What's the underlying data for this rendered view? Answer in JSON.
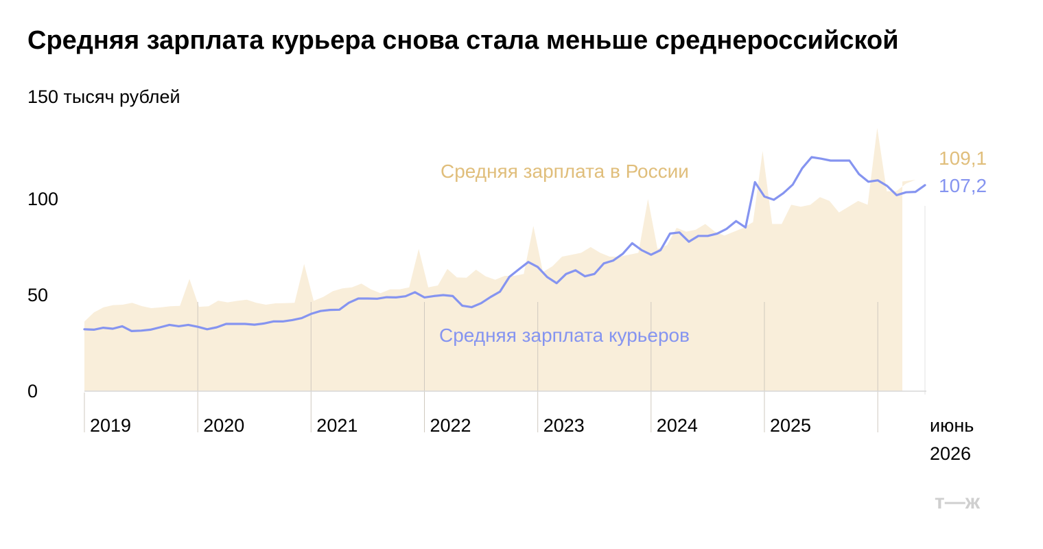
{
  "chart_data": {
    "type": "area",
    "title": "Средняя зарплата курьера снова стала меньше среднероссийской",
    "ylabel": "",
    "xlabel": "",
    "unit": "150 тысяч рублей",
    "yticks": [
      0,
      50,
      100
    ],
    "ylim": [
      0,
      150
    ],
    "x_start": "2019-01",
    "x_end": "2026-06",
    "x_tick_labels": [
      "2019",
      "2020",
      "2021",
      "2022",
      "2023",
      "2024",
      "2025"
    ],
    "x_end_label_line1": "июнь",
    "x_end_label_line2": "2026",
    "grid": false,
    "series": [
      {
        "name": "Средняя зарплата в России",
        "render": "area",
        "color": "#F9EEDA",
        "label_color": "#E0BE7B",
        "last_value_label": "109,1",
        "values": [
          36.2,
          41.0,
          43.6,
          44.8,
          45.0,
          46.0,
          44.3,
          43.2,
          43.6,
          44.2,
          44.4,
          58.4,
          43.9,
          44.2,
          47.1,
          46.2,
          47.0,
          47.6,
          46.0,
          45.0,
          45.7,
          45.8,
          46.0,
          66.2,
          47.0,
          49.0,
          52.0,
          53.5,
          54.0,
          56.0,
          53.0,
          51.0,
          53.0,
          53.0,
          54.0,
          74.0,
          54.0,
          55.0,
          63.6,
          59.2,
          59.0,
          63.2,
          59.8,
          58.0,
          60.0,
          60.0,
          61.0,
          86.0,
          62.0,
          65.0,
          70.0,
          71.0,
          72.0,
          75.0,
          72.0,
          70.0,
          70.0,
          71.0,
          72.0,
          100.0,
          74.0,
          76.0,
          85.0,
          83.0,
          84.0,
          87.0,
          83.0,
          81.0,
          83.0,
          85.0,
          88.0,
          125.0,
          87.0,
          87.0,
          97.0,
          96.0,
          97.0,
          101.0,
          99.0,
          93.0,
          96.0,
          99.0,
          97.0,
          137.0,
          104.0,
          104.0,
          108.0,
          110.0,
          109.1
        ]
      },
      {
        "name": "Средняя зарплата курьеров",
        "render": "line",
        "color": "#8594F0",
        "label_color": "#8594F0",
        "last_value_label": "107,2",
        "values": [
          32.2,
          32.0,
          33.0,
          32.5,
          33.8,
          31.3,
          31.5,
          32.0,
          33.2,
          34.5,
          33.8,
          34.5,
          33.5,
          32.2,
          33.2,
          35.0,
          35.0,
          35.0,
          34.6,
          35.2,
          36.3,
          36.3,
          37.0,
          38.0,
          40.2,
          41.7,
          42.3,
          42.4,
          46.0,
          48.2,
          48.2,
          48.1,
          48.9,
          48.8,
          49.4,
          51.5,
          48.8,
          49.5,
          50.0,
          49.5,
          44.5,
          43.7,
          45.8,
          49.0,
          51.8,
          59.5,
          63.4,
          67.2,
          64.6,
          59.4,
          56.2,
          61.0,
          62.9,
          59.8,
          61.0,
          66.5,
          68.0,
          71.5,
          77.0,
          73.4,
          71.0,
          73.4,
          82.0,
          82.6,
          77.8,
          80.8,
          80.8,
          82.0,
          84.5,
          88.5,
          85.2,
          108.8,
          101.3,
          99.6,
          103.0,
          107.5,
          116.0,
          121.8,
          121.0,
          120.0,
          120.0,
          120.0,
          113.0,
          109.0,
          109.7,
          106.8,
          102.0,
          103.5,
          103.7,
          107.2
        ]
      }
    ]
  },
  "logo_text": "т—ж"
}
